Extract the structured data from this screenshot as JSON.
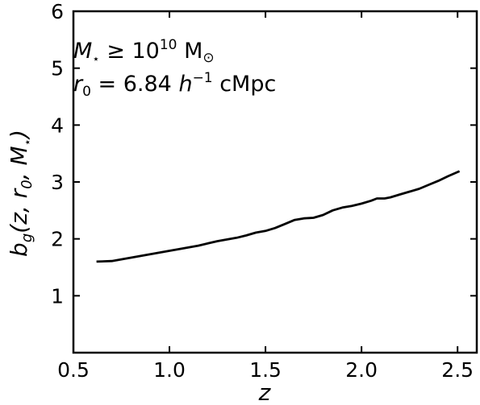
{
  "chart_data": {
    "type": "line",
    "title": "",
    "xlabel": "z",
    "ylabel": {
      "base": "b",
      "sub": "g",
      "args": "(z, r",
      "args_sub": "0",
      "args_tail": ", M",
      "star": "⋆",
      "close": ")"
    },
    "xlim": [
      0.5,
      2.6
    ],
    "ylim": [
      0,
      6
    ],
    "xticks": [
      0.5,
      1.0,
      1.5,
      2.0,
      2.5
    ],
    "xtick_labels": [
      "0.5",
      "1.0",
      "1.5",
      "2.0",
      "2.5"
    ],
    "yticks": [
      1,
      2,
      3,
      4,
      5,
      6
    ],
    "ytick_labels": [
      "1",
      "2",
      "3",
      "4",
      "5",
      "6"
    ],
    "grid": false,
    "annotations": {
      "line1": {
        "var": "M",
        "star": "⋆",
        "op": " ≥ 10",
        "exp": "10",
        "unit": " M",
        "sun": "⊙"
      },
      "line2": {
        "var": "r",
        "sub": "0",
        "eq": " = 6.84 ",
        "h": "h",
        "exp": "−1",
        "unit": " cMpc"
      }
    },
    "series": [
      {
        "color": "#000000",
        "x": [
          0.62,
          0.7,
          0.75,
          0.8,
          0.85,
          0.9,
          0.95,
          1.0,
          1.05,
          1.1,
          1.15,
          1.2,
          1.25,
          1.3,
          1.35,
          1.4,
          1.45,
          1.5,
          1.55,
          1.6,
          1.65,
          1.7,
          1.75,
          1.8,
          1.85,
          1.9,
          1.95,
          2.0,
          2.05,
          2.08,
          2.12,
          2.15,
          2.2,
          2.25,
          2.3,
          2.35,
          2.4,
          2.45,
          2.51
        ],
        "y": [
          1.6,
          1.61,
          1.64,
          1.67,
          1.7,
          1.73,
          1.76,
          1.79,
          1.82,
          1.85,
          1.88,
          1.92,
          1.96,
          1.99,
          2.02,
          2.06,
          2.11,
          2.14,
          2.19,
          2.26,
          2.33,
          2.36,
          2.37,
          2.42,
          2.5,
          2.55,
          2.58,
          2.62,
          2.67,
          2.71,
          2.71,
          2.73,
          2.78,
          2.83,
          2.88,
          2.95,
          3.02,
          3.1,
          3.19
        ]
      }
    ]
  }
}
